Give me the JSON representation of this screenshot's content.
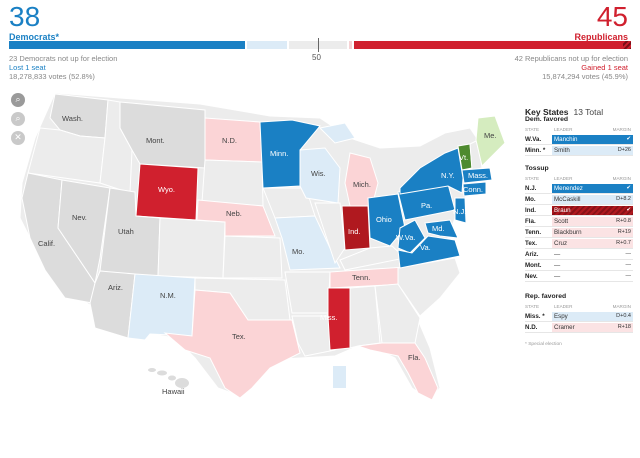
{
  "header": {
    "dem": {
      "count": "38",
      "label": "Democrats*",
      "line1": "23 Democrats not up for election",
      "line2": "Lost 1 seat",
      "line3": "18,278,833 votes (52.8%)"
    },
    "rep": {
      "count": "45",
      "label": "Republicans",
      "line1": "42 Republicans not up for election",
      "line2": "Gained 1 seat",
      "line3": "15,874,294 votes (45.9%)"
    },
    "midpoint": "50"
  },
  "colors": {
    "dem": "#1a80c4",
    "dem_lean": "#dcebf7",
    "rep": "#d0202e",
    "rep_dark": "#b0191f",
    "rep_lean": "#fbd4d6",
    "independent": "#4e8a2f",
    "independent_lean": "#d5ecbf",
    "not_up": "#dcdcdc",
    "tossup": "#ececec"
  },
  "zoom_controls": {
    "zoom_in": "zoom-in-icon",
    "zoom_out": "zoom-out-icon",
    "reset": "close-icon"
  },
  "map": {
    "labels": {
      "wash": "Wash.",
      "mont": "Mont.",
      "nd": "N.D.",
      "minn": "Minn.",
      "wis": "Wis.",
      "mich": "Mich.",
      "me": "Me.",
      "vt": "Vt.",
      "mass": "Mass.",
      "conn": "Conn.",
      "ny": "N.Y.",
      "pa": "Pa.",
      "nj": "N.J.",
      "md": "Md.",
      "wva": "W.Va.",
      "va": "Va.",
      "ohio": "Ohio",
      "ind": "Ind.",
      "wyo": "Wyo.",
      "neb": "Neb.",
      "nev": "Nev.",
      "utah": "Utah",
      "calif": "Calif.",
      "ariz": "Ariz.",
      "nm": "N.M.",
      "mo": "Mo.",
      "tenn": "Tenn.",
      "miss": "Miss.",
      "tex": "Tex.",
      "fla": "Fla.",
      "hawaii": "Hawaii"
    }
  },
  "key_states": {
    "title": "Key States",
    "total": "13 Total",
    "col_state": "STATE",
    "col_leader": "LEADER",
    "col_margin": "MARGIN",
    "groups": [
      {
        "name": "Dem. favored",
        "rows": [
          {
            "state": "W.Va.",
            "leader": "Manchin",
            "margin": "✔",
            "style": "dem"
          },
          {
            "state": "Minn. *",
            "leader": "Smith",
            "margin": "D+26",
            "style": "dem-lite"
          }
        ]
      },
      {
        "name": "Tossup",
        "rows": [
          {
            "state": "N.J.",
            "leader": "Menendez",
            "margin": "✔",
            "style": "dem"
          },
          {
            "state": "Mo.",
            "leader": "McCaskill",
            "margin": "D+8.2",
            "style": "dem-lite"
          },
          {
            "state": "Ind.",
            "leader": "Braun",
            "margin": "✔",
            "style": "rep"
          },
          {
            "state": "Fla.",
            "leader": "Scott",
            "margin": "R+0.8",
            "style": "rep-lite"
          },
          {
            "state": "Tenn.",
            "leader": "Blackburn",
            "margin": "R+19",
            "style": "rep-lite"
          },
          {
            "state": "Tex.",
            "leader": "Cruz",
            "margin": "R+0.7",
            "style": "rep-lite"
          },
          {
            "state": "Ariz.",
            "leader": "—",
            "margin": "—",
            "style": "none"
          },
          {
            "state": "Mont.",
            "leader": "—",
            "margin": "—",
            "style": "none"
          },
          {
            "state": "Nev.",
            "leader": "—",
            "margin": "—",
            "style": "none"
          }
        ]
      },
      {
        "name": "Rep. favored",
        "rows": [
          {
            "state": "Miss. *",
            "leader": "Espy",
            "margin": "D+0.4",
            "style": "dem-lite"
          },
          {
            "state": "N.D.",
            "leader": "Cramer",
            "margin": "R+18",
            "style": "rep-lite"
          }
        ]
      }
    ],
    "footnote": "* Special election"
  }
}
